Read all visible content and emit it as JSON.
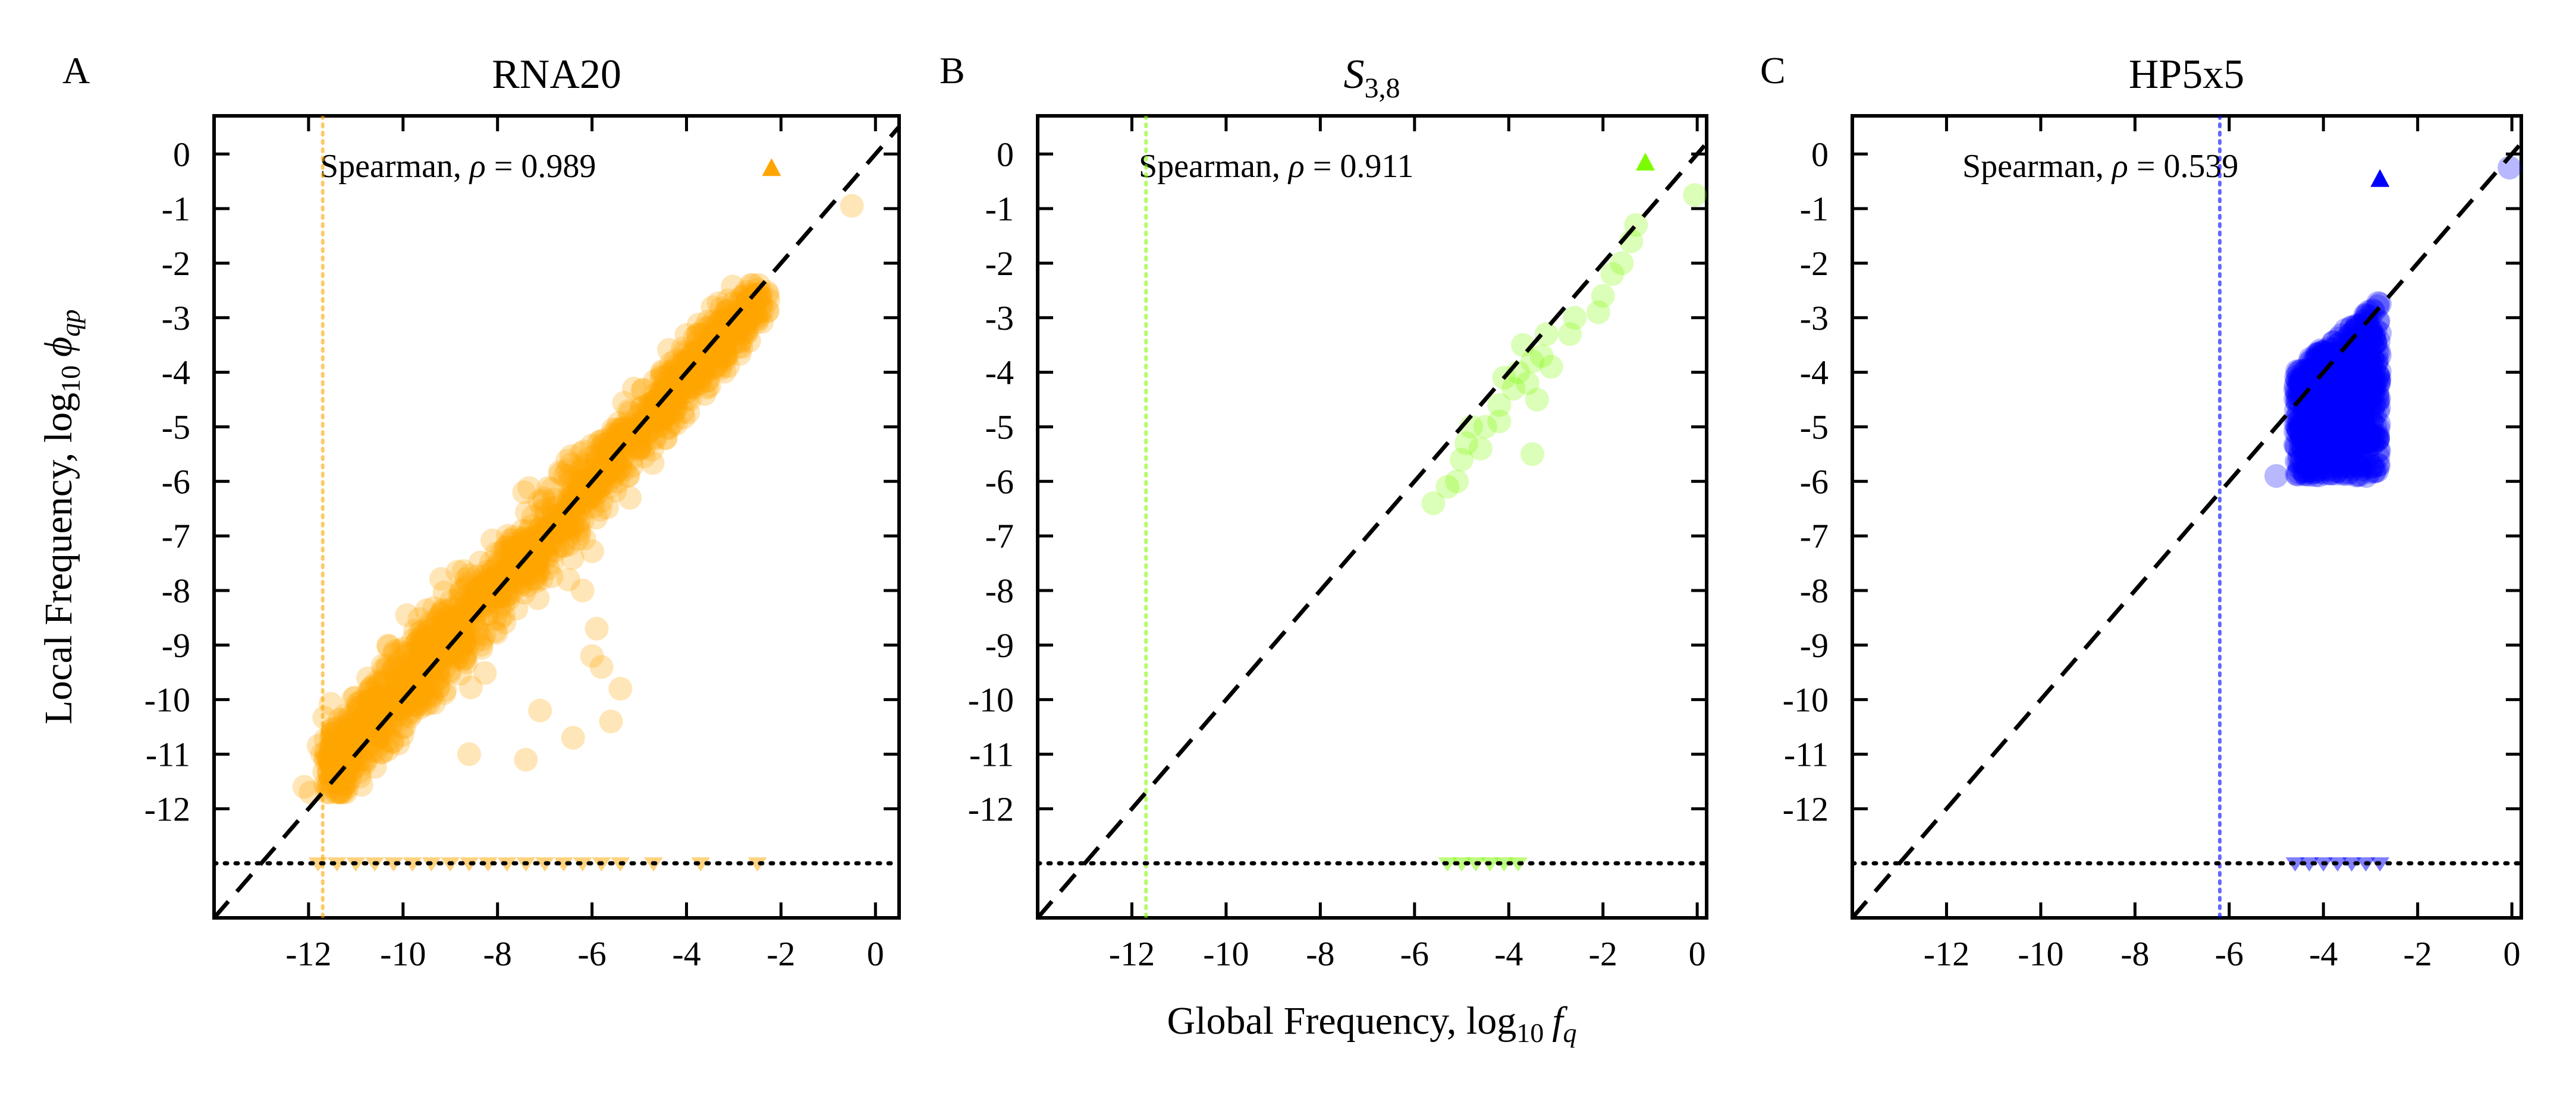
{
  "figure": {
    "xlabel_prefix": "Global Frequency, log",
    "xlabel_sub": "10",
    "xlabel_var": "f",
    "xlabel_var_sub": "q",
    "ylabel_prefix": "Local Frequency, log",
    "ylabel_sub": "10",
    "ylabel_var": "ϕ",
    "ylabel_var_sub": "qp",
    "annotation_prefix": "Spearman, ",
    "annotation_rho": "ρ",
    "annotation_eq": " = "
  },
  "chart_data": [
    {
      "type": "scatter",
      "panel_letter": "A",
      "title": "RNA20",
      "color": "#FFA500",
      "spearman": "0.989",
      "xlim": [
        -14,
        0.5
      ],
      "ylim": [
        -14,
        0.7
      ],
      "xticks": [
        -12,
        -10,
        -8,
        -6,
        -4,
        -2,
        0
      ],
      "yticks": [
        0,
        -1,
        -2,
        -3,
        -4,
        -5,
        -6,
        -7,
        -8,
        -9,
        -10,
        -11,
        -12
      ],
      "zero_level": -13,
      "vline_x": -11.7,
      "triangle": [
        -2.2,
        -0.25
      ],
      "cloud": {
        "x_min": -11.6,
        "x_max": -2.4,
        "y_at_min": -11.3,
        "y_at_max": -2.6,
        "spread": 0.45,
        "count": 1400
      },
      "outliers": [
        [
          -0.5,
          -0.95
        ],
        [
          -4,
          -3.8
        ],
        [
          -3.3,
          -3.9
        ],
        [
          -5.6,
          -6.1
        ],
        [
          -5.2,
          -6.3
        ],
        [
          -6.5,
          -7.8
        ],
        [
          -6.2,
          -8.0
        ],
        [
          -5.8,
          -9.4
        ],
        [
          -5.4,
          -9.8
        ],
        [
          -6.0,
          -9.2
        ],
        [
          -5.9,
          -8.7
        ],
        [
          -7.1,
          -10.2
        ],
        [
          -6.4,
          -10.7
        ],
        [
          -5.6,
          -10.4
        ],
        [
          -7.4,
          -11.1
        ],
        [
          -8.6,
          -11.0
        ]
      ],
      "zero_points": [
        -11.8,
        -11.4,
        -11.0,
        -10.6,
        -10.2,
        -9.8,
        -9.4,
        -9.0,
        -8.6,
        -8.2,
        -7.8,
        -7.4,
        -7.0,
        -6.6,
        -6.2,
        -5.8,
        -5.4,
        -4.7,
        -3.7,
        -2.5
      ]
    },
    {
      "type": "scatter",
      "panel_letter": "B",
      "title_main": "S",
      "title_sub": "3,8",
      "color": "#7CFC00",
      "spearman": "0.911",
      "xlim": [
        -14,
        0.2
      ],
      "ylim": [
        -14,
        0.7
      ],
      "xticks": [
        -12,
        -10,
        -8,
        -6,
        -4,
        -2,
        0
      ],
      "yticks": [
        0,
        -1,
        -2,
        -3,
        -4,
        -5,
        -6,
        -7,
        -8,
        -9,
        -10,
        -11,
        -12
      ],
      "zero_level": -13,
      "vline_x": -11.7,
      "triangle": [
        -1.1,
        -0.15
      ],
      "points": [
        [
          -0.05,
          -0.75
        ],
        [
          -1.3,
          -1.3
        ],
        [
          -1.4,
          -1.6
        ],
        [
          -1.6,
          -2.0
        ],
        [
          -1.8,
          -2.2
        ],
        [
          -2.0,
          -2.6
        ],
        [
          -2.1,
          -2.9
        ],
        [
          -2.6,
          -3.0
        ],
        [
          -2.7,
          -3.3
        ],
        [
          -3.2,
          -3.3
        ],
        [
          -3.3,
          -3.7
        ],
        [
          -3.1,
          -3.9
        ],
        [
          -3.5,
          -3.8
        ],
        [
          -3.6,
          -4.2
        ],
        [
          -3.7,
          -3.5
        ],
        [
          -3.4,
          -4.5
        ],
        [
          -3.8,
          -4.0
        ],
        [
          -3.9,
          -4.3
        ],
        [
          -4.1,
          -4.1
        ],
        [
          -4.2,
          -4.6
        ],
        [
          -3.5,
          -5.5
        ],
        [
          -4.2,
          -4.9
        ],
        [
          -4.5,
          -5.0
        ],
        [
          -4.6,
          -5.4
        ],
        [
          -4.8,
          -5.0
        ],
        [
          -4.9,
          -5.3
        ],
        [
          -5.0,
          -5.6
        ],
        [
          -5.1,
          -6.0
        ],
        [
          -5.3,
          -6.1
        ],
        [
          -5.6,
          -6.4
        ]
      ],
      "zero_points": [
        -5.3,
        -5.0,
        -4.7,
        -4.4,
        -4.1,
        -3.8
      ]
    },
    {
      "type": "scatter",
      "panel_letter": "C",
      "title": "HP5x5",
      "color": "#0000FF",
      "spearman": "0.539",
      "xlim": [
        -14,
        0.2
      ],
      "ylim": [
        -14,
        0.7
      ],
      "xticks": [
        -12,
        -10,
        -8,
        -6,
        -4,
        -2,
        0
      ],
      "yticks": [
        0,
        -1,
        -2,
        -3,
        -4,
        -5,
        -6,
        -7,
        -8,
        -9,
        -10,
        -11,
        -12
      ],
      "zero_level": -13,
      "vline_x": -6.2,
      "triangle": [
        -2.8,
        -0.45
      ],
      "cloud": {
        "x_min": -4.6,
        "x_max": -2.8,
        "y_top": -2.7,
        "y_bottom": -5.9,
        "count": 700
      },
      "extra_points": [
        [
          -0.05,
          -0.25
        ],
        [
          -5.0,
          -5.9
        ]
      ],
      "zero_points": [
        -4.6,
        -4.3,
        -4.0,
        -3.7,
        -3.4,
        -3.1,
        -2.8
      ]
    }
  ]
}
